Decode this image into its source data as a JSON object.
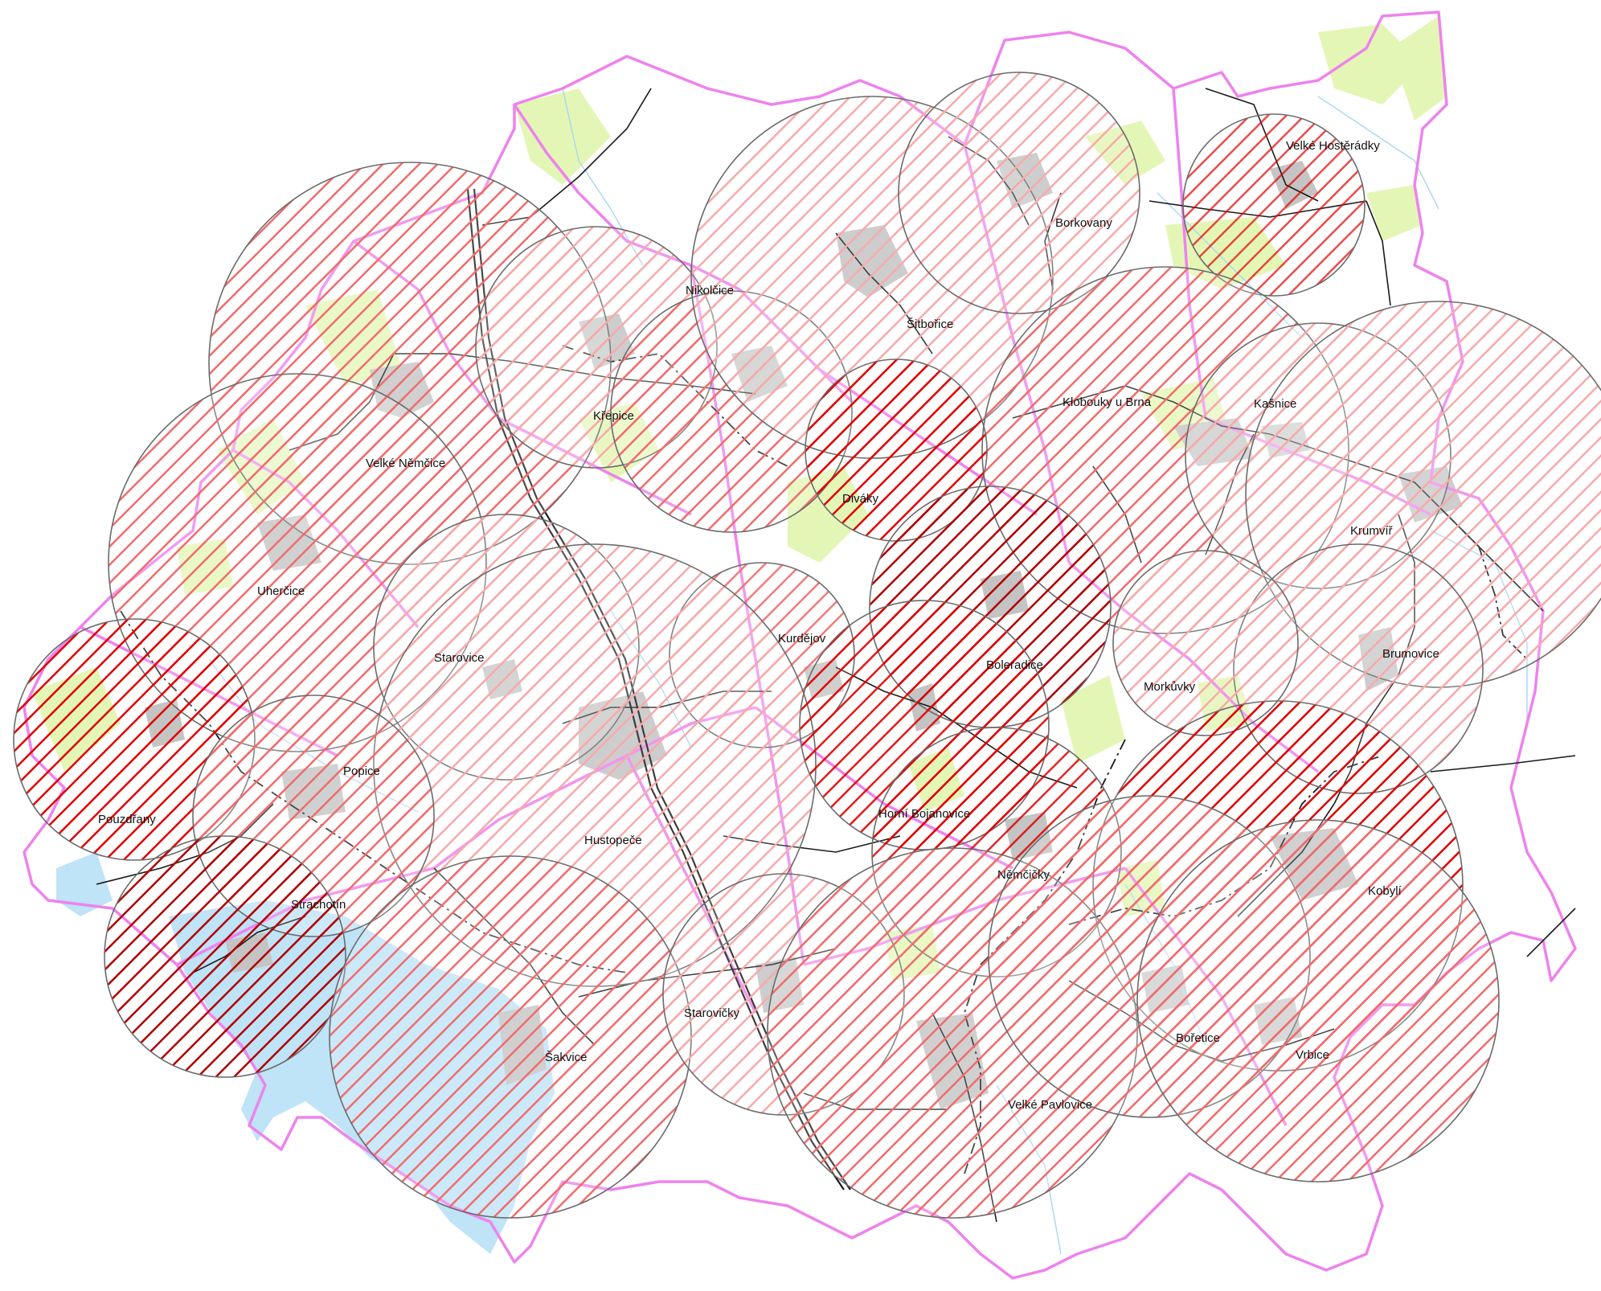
{
  "map": {
    "colors": {
      "background": "#ffffff",
      "boundary": "#ee82ee",
      "forest": "#e4f6b6",
      "water": "#bfe3f7",
      "settlement": "#c4c4c4",
      "hatch_low": "#f7aaaa",
      "hatch_mid": "#f06c6c",
      "hatch_high": "#e00000",
      "hatch_max": "#b00000",
      "circle_outline": "#6b6b6b"
    },
    "zones": [
      {
        "id": "velke-nemcice",
        "label": "Velké Němčice",
        "intensity": "mid"
      },
      {
        "id": "uhercice",
        "label": "Uherčice",
        "intensity": "mid"
      },
      {
        "id": "krepice",
        "label": "Křepice",
        "intensity": "low"
      },
      {
        "id": "nikolcice",
        "label": "Nikolčice",
        "intensity": "mid"
      },
      {
        "id": "sitborice",
        "label": "Šitbořice",
        "intensity": "low"
      },
      {
        "id": "borkovany",
        "label": "Borkovany",
        "intensity": "low"
      },
      {
        "id": "velke-hosteradky",
        "label": "Velké Hostěrádky",
        "intensity": "high"
      },
      {
        "id": "klobouky",
        "label": "Klobouky u Brna",
        "intensity": "mid"
      },
      {
        "id": "kasnice",
        "label": "Kašnice",
        "intensity": "low"
      },
      {
        "id": "krumvir",
        "label": "Krumvíř",
        "intensity": "low"
      },
      {
        "id": "brumovice",
        "label": "Brumovice",
        "intensity": "low"
      },
      {
        "id": "divaky",
        "label": "Diváky",
        "intensity": "high"
      },
      {
        "id": "boleradice",
        "label": "Boleradice",
        "intensity": "max"
      },
      {
        "id": "morkuvky",
        "label": "Morkůvky",
        "intensity": "low"
      },
      {
        "id": "starovice",
        "label": "Starovice",
        "intensity": "low"
      },
      {
        "id": "kurdejov",
        "label": "Kurdějov",
        "intensity": "mid"
      },
      {
        "id": "hustopece",
        "label": "Hustopeče",
        "intensity": "low"
      },
      {
        "id": "horni-bojanovice",
        "label": "Horní Bojanovice",
        "intensity": "high"
      },
      {
        "id": "nemcicky",
        "label": "Němčičky",
        "intensity": "high"
      },
      {
        "id": "kobyli",
        "label": "Kobylí",
        "intensity": "high"
      },
      {
        "id": "pouzdrany",
        "label": "Pouzdřany",
        "intensity": "high"
      },
      {
        "id": "popice",
        "label": "Popice",
        "intensity": "mid"
      },
      {
        "id": "strachotin",
        "label": "Strachotín",
        "intensity": "max"
      },
      {
        "id": "sakvice",
        "label": "Šakvice",
        "intensity": "mid"
      },
      {
        "id": "staravicky",
        "label": "Starovičky",
        "intensity": "low"
      },
      {
        "id": "velke-pavlovice",
        "label": "Velké Pavlovice",
        "intensity": "mid"
      },
      {
        "id": "boretice",
        "label": "Bořetice",
        "intensity": "mid"
      },
      {
        "id": "vrbice",
        "label": "Vrbice",
        "intensity": "mid"
      }
    ]
  }
}
